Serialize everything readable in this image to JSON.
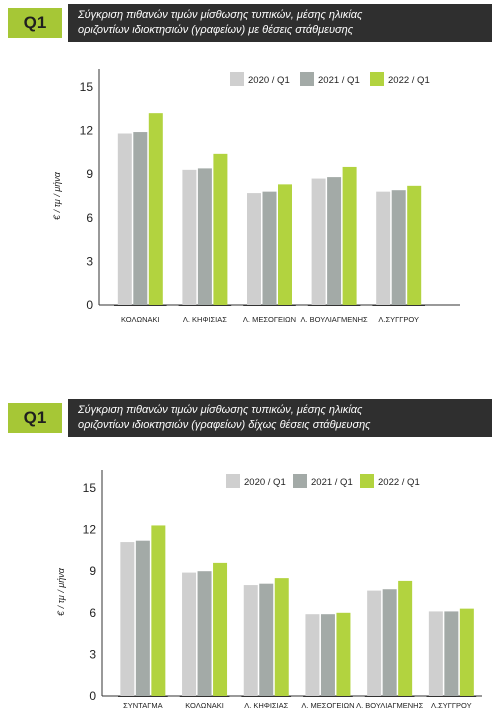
{
  "chart_data": [
    {
      "type": "bar",
      "badge": "Q1",
      "title_line1": "Σύγκριση πιθανών τιμών μίσθωσης τυπικών, μέσης ηλικίας",
      "title_line2": "οριζοντίων ιδιοκτησιών (γραφείων) με θέσεις στάθμευσης",
      "ylabel": "€ / τμ / μήνα",
      "ylim": [
        0,
        15
      ],
      "yticks": [
        0,
        3,
        6,
        9,
        12,
        15
      ],
      "categories": [
        "ΚΟΛΩΝΑΚΙ",
        "Λ. ΚΗΦΙΣΙΑΣ",
        "Λ. ΜΕΣΟΓΕΙΩΝ",
        "Λ. ΒΟΥΛΙΑΓΜΕΝΗΣ",
        "Λ.ΣΥΓΓΡΟΥ"
      ],
      "series": [
        {
          "name": "2020 / Q1",
          "color": "#cfcfcf",
          "values": [
            11.8,
            9.3,
            7.7,
            8.7,
            7.8
          ]
        },
        {
          "name": "2021 / Q1",
          "color": "#a3aaa7",
          "values": [
            11.9,
            9.4,
            7.8,
            8.8,
            7.9
          ]
        },
        {
          "name": "2022 / Q1",
          "color": "#b2d33f",
          "values": [
            13.2,
            10.4,
            8.3,
            9.5,
            8.2
          ]
        }
      ],
      "legend_position": "top-right",
      "grid": false
    },
    {
      "type": "bar",
      "badge": "Q1",
      "title_line1": "Σύγκριση πιθανών τιμών μίσθωσης τυπικών, μέσης ηλικίας",
      "title_line2": "οριζοντίων ιδιοκτησιών (γραφείων) δίχως θέσεις στάθμευσης",
      "ylabel": "€ / τμ / μήνα",
      "ylim": [
        0,
        15
      ],
      "yticks": [
        0,
        3,
        6,
        9,
        12,
        15
      ],
      "categories": [
        "ΣΥΝΤΑΓΜΑ",
        "ΚΟΛΩΝΑΚΙ",
        "Λ. ΚΗΦΙΣΙΑΣ",
        "Λ. ΜΕΣΟΓΕΙΩΝ",
        "Λ. ΒΟΥΛΙΑΓΜΕΝΗΣ",
        "Λ.ΣΥΓΓΡΟΥ"
      ],
      "series": [
        {
          "name": "2020 / Q1",
          "color": "#cfcfcf",
          "values": [
            11.1,
            8.9,
            8.0,
            5.9,
            7.6,
            6.1
          ]
        },
        {
          "name": "2021 / Q1",
          "color": "#a3aaa7",
          "values": [
            11.2,
            9.0,
            8.1,
            5.9,
            7.7,
            6.1
          ]
        },
        {
          "name": "2022 / Q1",
          "color": "#b2d33f",
          "values": [
            12.3,
            9.6,
            8.5,
            6.0,
            8.3,
            6.3
          ]
        }
      ],
      "legend_position": "top-right",
      "grid": false
    }
  ]
}
